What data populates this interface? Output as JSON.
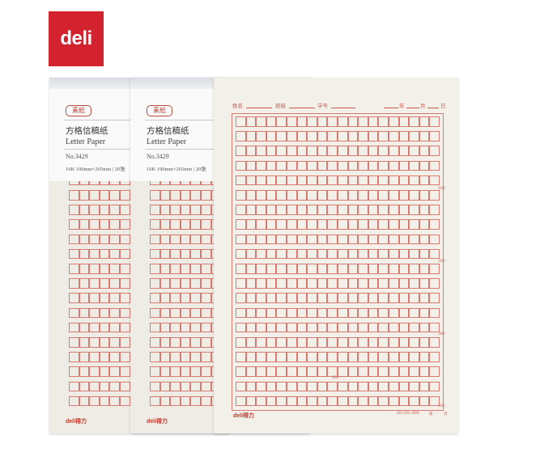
{
  "logo": {
    "text": "deli",
    "color": "#d2232f"
  },
  "pads": [
    {
      "seal": "素紙",
      "cn_title": "方格信稿纸",
      "en_title": "Letter Paper",
      "model": "No.3429",
      "spec": "16K 190mm×265mm | 20张",
      "brand": "deli得力"
    },
    {
      "seal": "素紙",
      "cn_title": "方格信稿纸",
      "en_title": "Letter Paper",
      "model": "No.3429",
      "spec": "16K 190mm×265mm | 20张",
      "brand": "deli得力"
    }
  ],
  "sheet": {
    "fields": {
      "name": "姓名",
      "class": "班级",
      "student_no": "学号",
      "year": "年",
      "month": "月",
      "day": "日"
    },
    "counts": [
      "100",
      "200",
      "300",
      "400"
    ],
    "mid_count": "300",
    "grid_spec": "20×20=400",
    "page_label": "第",
    "page_unit": "页",
    "brand": "deli得力"
  },
  "colors": {
    "grid_line": "#d77a72",
    "paper": "#efece6"
  }
}
